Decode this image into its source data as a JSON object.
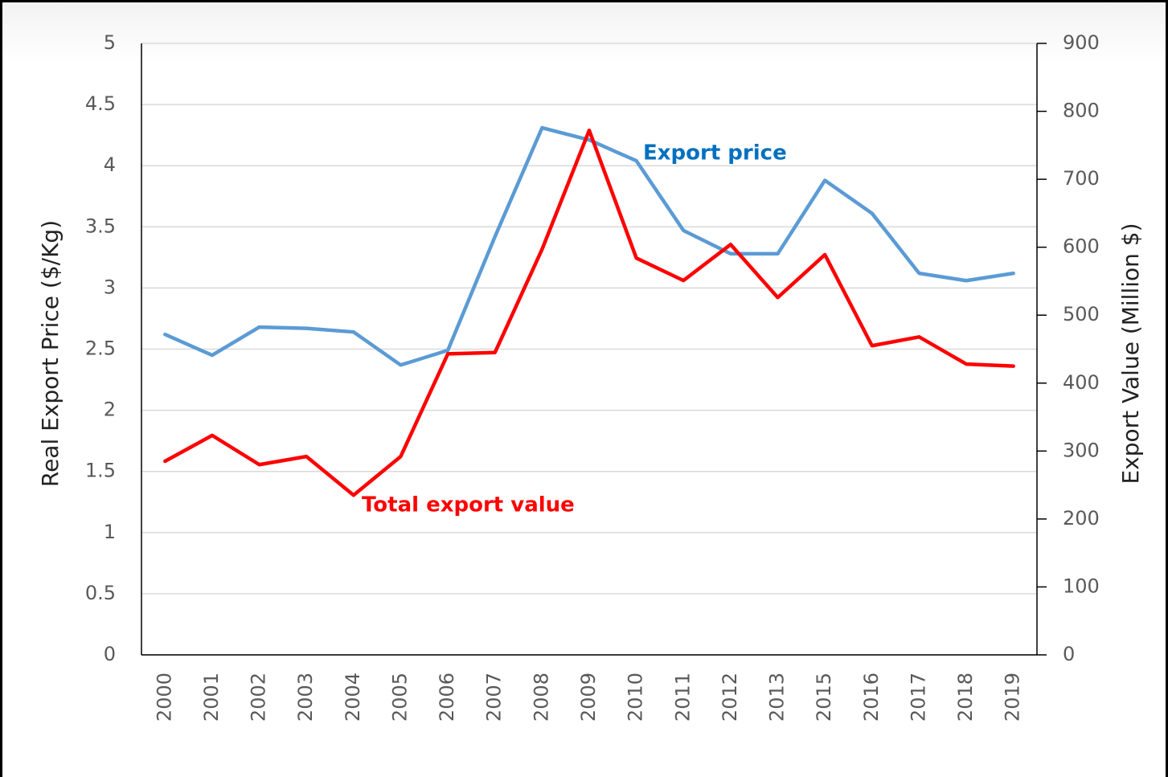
{
  "chart_data": {
    "type": "line",
    "categories": [
      "2000",
      "2001",
      "2002",
      "2003",
      "2004",
      "2005",
      "2006",
      "2007",
      "2008",
      "2009",
      "2010",
      "2011",
      "2012",
      "2013",
      "2015",
      "2016",
      "2017",
      "2018",
      "2019"
    ],
    "series": [
      {
        "name": "Export price",
        "color": "#5b9bd5",
        "axis": "y",
        "values": [
          2.62,
          2.45,
          2.68,
          2.67,
          2.64,
          2.37,
          2.49,
          3.42,
          4.31,
          4.21,
          4.04,
          3.47,
          3.28,
          3.28,
          3.88,
          3.61,
          3.12,
          3.06,
          3.12
        ]
      },
      {
        "name": "Total export value",
        "color": "#ff0000",
        "axis": "y2",
        "values": [
          285,
          323,
          280,
          292,
          235,
          292,
          443,
          445,
          597,
          772,
          584,
          551,
          604,
          526,
          589,
          455,
          468,
          428,
          425
        ]
      }
    ],
    "ylabel": "Real Export Price ($/Kg)",
    "y2label": "Export Value (Million $)",
    "ylim": [
      0,
      5
    ],
    "yticks": [
      0,
      0.5,
      1,
      1.5,
      2,
      2.5,
      3,
      3.5,
      4,
      4.5,
      5
    ],
    "y2lim": [
      0,
      900
    ],
    "y2ticks": [
      0,
      100,
      200,
      300,
      400,
      500,
      600,
      700,
      800,
      900
    ],
    "grid": true
  }
}
